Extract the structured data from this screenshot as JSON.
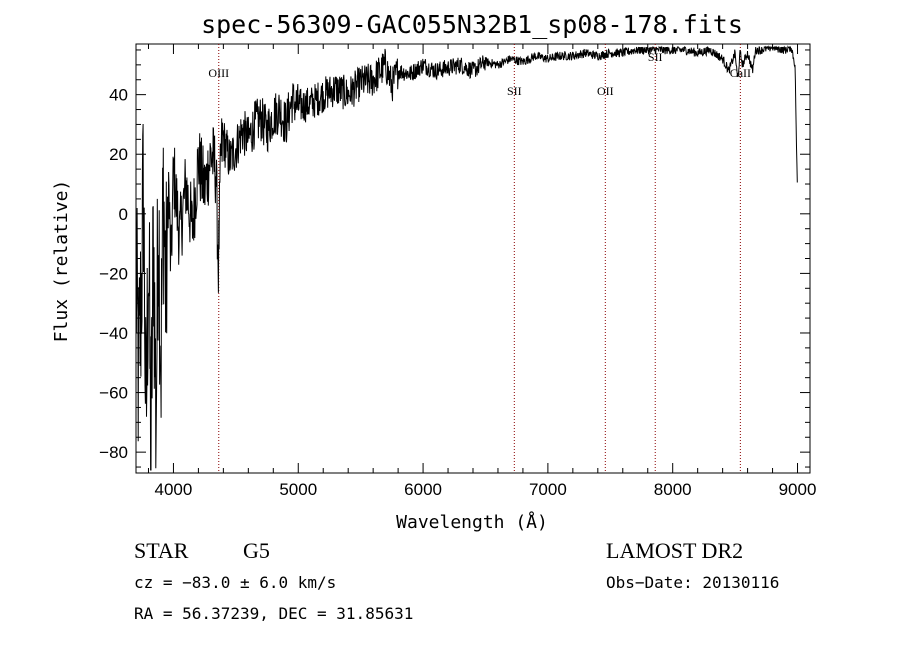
{
  "chart_data": {
    "type": "line",
    "title": "spec-56309-GAC055N32B1_sp08-178.fits",
    "xlabel": "Wavelength (Å)",
    "ylabel": "Flux (relative)",
    "xlim": [
      3700,
      9100
    ],
    "ylim": [
      -87,
      57
    ],
    "xticks": [
      4000,
      5000,
      6000,
      7000,
      8000,
      9000
    ],
    "yticks": [
      -80,
      -60,
      -40,
      -20,
      0,
      20,
      40
    ],
    "grid": false,
    "series": [
      {
        "x": [
          3700,
          3720,
          3740,
          3760,
          3780,
          3800,
          3820,
          3840,
          3860,
          3880,
          3900,
          3920,
          3940,
          3960,
          3980,
          4000,
          4050,
          4100,
          4150,
          4200,
          4250,
          4300,
          4340,
          4360,
          4380,
          4400,
          4450,
          4500,
          4550,
          4600,
          4650,
          4700,
          4750,
          4800,
          4850,
          4900,
          4950,
          5000,
          5100,
          5200,
          5300,
          5400,
          5500,
          5600,
          5700,
          5750,
          5800,
          5900,
          6000,
          6100,
          6200,
          6300,
          6400,
          6500,
          6600,
          6700,
          6800,
          6900,
          7000,
          7100,
          7200,
          7300,
          7400,
          7500,
          7600,
          7700,
          7800,
          7900,
          8000,
          8100,
          8200,
          8300,
          8400,
          8450,
          8500,
          8520,
          8540,
          8560,
          8600,
          8640,
          8662,
          8700,
          8800,
          8900,
          8950,
          8980,
          9000
        ],
        "y": [
          -20,
          -55,
          -30,
          10,
          -75,
          -10,
          -82,
          -5,
          -70,
          5,
          -50,
          10,
          -30,
          12,
          -20,
          15,
          -8,
          10,
          -5,
          18,
          8,
          20,
          15,
          -18,
          20,
          25,
          18,
          22,
          28,
          25,
          30,
          32,
          28,
          33,
          35,
          30,
          38,
          36,
          37,
          40,
          42,
          40,
          44,
          45,
          50,
          43,
          48,
          47,
          50,
          48,
          49,
          50,
          48,
          51,
          50,
          52,
          51,
          53,
          52,
          53,
          53,
          54,
          53,
          54,
          54,
          55,
          55,
          55,
          55,
          55,
          54,
          55,
          52,
          48,
          54,
          45,
          54,
          50,
          54,
          48,
          55,
          55,
          56,
          55,
          56,
          50,
          5
        ]
      }
    ],
    "annotations": [
      {
        "label": "OIII",
        "x": 4363
      },
      {
        "label": "SII",
        "x": 6731
      },
      {
        "label": "OII",
        "x": 7460
      },
      {
        "label": "SII",
        "x": 7860
      },
      {
        "label": "CaII",
        "x": 8542
      }
    ],
    "line_color": "#000000",
    "annotation_color": "#8b0000"
  },
  "info": {
    "object_class": "STAR",
    "subclass": "G5",
    "survey": "LAMOST DR2",
    "cz": "cz = −83.0 ± 6.0 km/s",
    "obs_date": "Obs−Date: 20130116",
    "radec": "RA =  56.37239, DEC =  31.85631"
  }
}
